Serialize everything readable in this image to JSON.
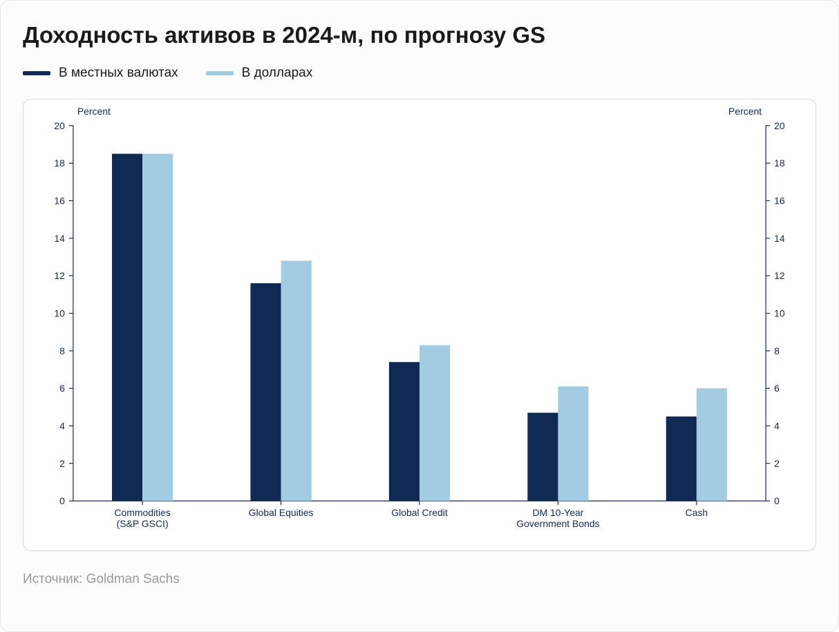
{
  "title": "Доходность активов в 2024-м, по прогнозу GS",
  "legend": {
    "local": {
      "label": "В местных валютах",
      "color": "#102a54"
    },
    "usd": {
      "label": "В долларах",
      "color": "#a3cce3"
    }
  },
  "chart": {
    "type": "bar",
    "y_axis_title_left": "Percent",
    "y_axis_title_right": "Percent",
    "ylim": [
      0,
      20
    ],
    "ytick_step": 2,
    "tick_color": "#102a54",
    "axis_line_color": "#102a54",
    "background_color": "#ffffff",
    "bar_colors": {
      "local": "#102a54",
      "usd": "#a3cce3"
    },
    "bar_width_ratio": 0.22,
    "bar_gap_ratio": 0.0,
    "categories": [
      "Commodities\n(S&P GSCI)",
      "Global Equities",
      "Global Credit",
      "DM 10-Year\nGovernment Bonds",
      "Cash"
    ],
    "series": {
      "local": [
        18.5,
        11.6,
        7.4,
        4.7,
        4.5
      ],
      "usd": [
        18.5,
        12.8,
        8.3,
        6.1,
        6.0
      ]
    },
    "label_fontsize": 14,
    "axis_title_fontsize": 14
  },
  "source": "Источник: Goldman Sachs"
}
